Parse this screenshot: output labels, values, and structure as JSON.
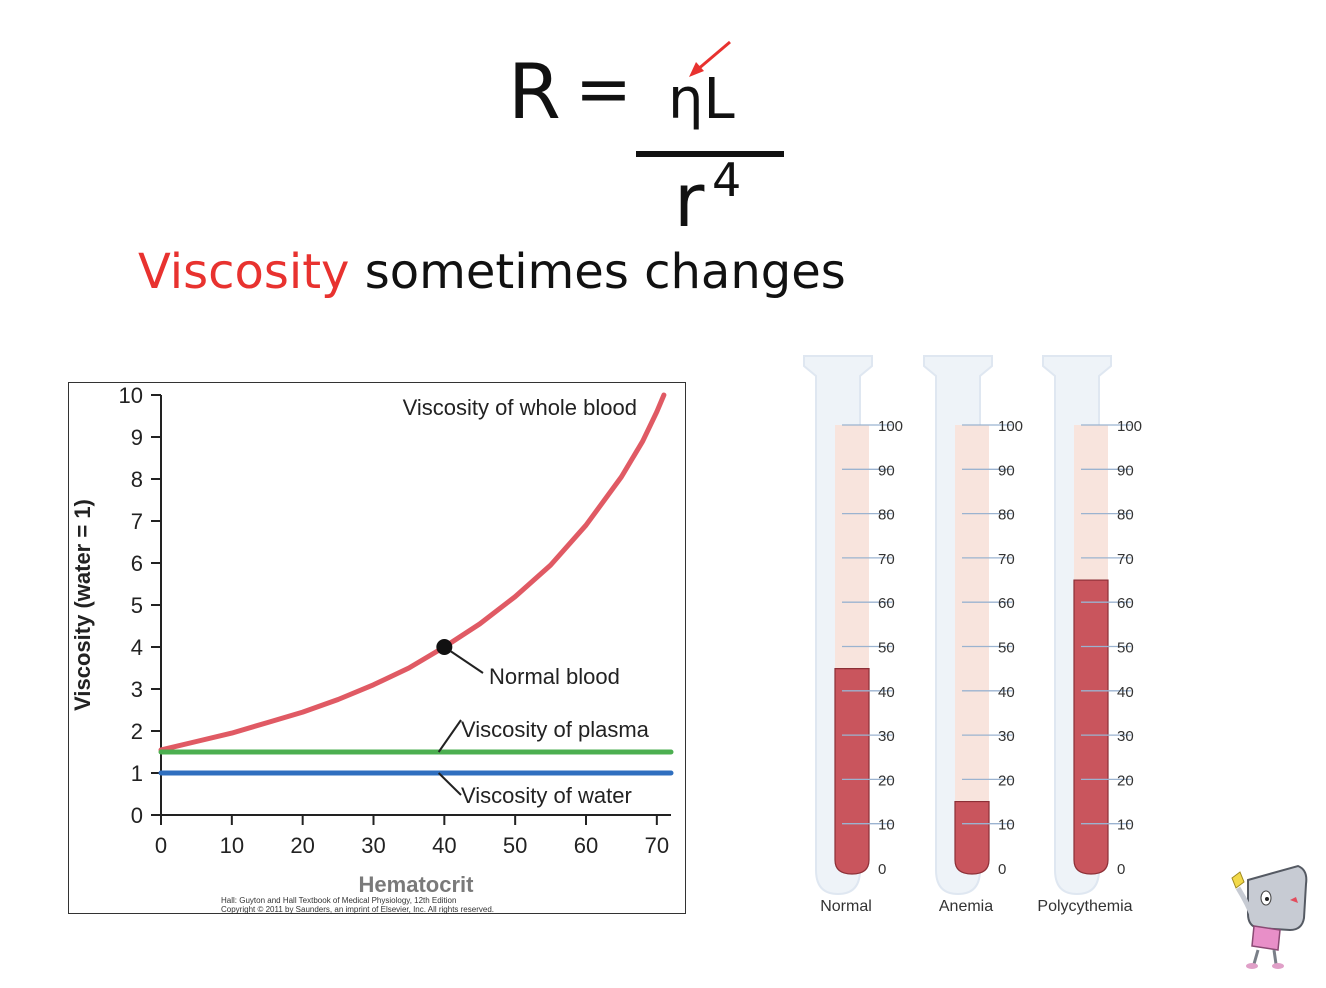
{
  "slide": {
    "formula": {
      "lhs": "R",
      "equals": "=",
      "numerator": "ηL",
      "denominator_base": "r",
      "denominator_exp": "4"
    },
    "subtitle": {
      "highlight": "Viscosity",
      "rest": " sometimes changes"
    },
    "colors": {
      "highlight": "#e8322f",
      "arrow": "#e8322f"
    }
  },
  "chart_data": [
    {
      "type": "line",
      "xlabel": "Hematocrit",
      "ylabel": "Viscosity (water = 1)",
      "xlim": [
        0,
        72
      ],
      "ylim": [
        0,
        10
      ],
      "x_ticks": [
        0,
        10,
        20,
        30,
        40,
        50,
        60,
        70
      ],
      "y_ticks": [
        0,
        1,
        2,
        3,
        4,
        5,
        6,
        7,
        8,
        9,
        10
      ],
      "grid": false,
      "series": [
        {
          "name": "Viscosity of whole blood",
          "color": "#e05a64",
          "x": [
            0,
            5,
            10,
            15,
            20,
            25,
            30,
            35,
            40,
            45,
            50,
            55,
            60,
            65,
            68,
            70,
            71
          ],
          "y": [
            1.55,
            1.75,
            1.95,
            2.2,
            2.45,
            2.75,
            3.1,
            3.5,
            4.0,
            4.55,
            5.2,
            5.95,
            6.9,
            8.05,
            8.9,
            9.6,
            10.0
          ]
        },
        {
          "name": "Viscosity of plasma",
          "color": "#4caf50",
          "x": [
            0,
            72
          ],
          "y": [
            1.5,
            1.5
          ]
        },
        {
          "name": "Viscosity of water",
          "color": "#2f6fbf",
          "x": [
            0,
            72
          ],
          "y": [
            1.0,
            1.0
          ]
        }
      ],
      "annotations": [
        {
          "text": "Normal blood",
          "x": 40,
          "y": 4.0
        }
      ],
      "credit": [
        "Hall: Guyton and Hall Textbook of Medical Physiology, 12th Edition",
        "Copyright © 2011 by Saunders, an imprint of Elsevier, Inc. All rights reserved."
      ]
    },
    {
      "type": "bar",
      "categories": [
        "Normal",
        "Anemia",
        "Polycythemia"
      ],
      "values": [
        45,
        15,
        65
      ],
      "ylim": [
        0,
        100
      ],
      "y_ticks": [
        0,
        10,
        20,
        30,
        40,
        50,
        60,
        70,
        80,
        90,
        100
      ],
      "colors": {
        "cells": "#c9555d",
        "plasma": "#f8e4dd",
        "tube": "#eef3f8",
        "ticks": "#9bb3d0"
      }
    }
  ]
}
